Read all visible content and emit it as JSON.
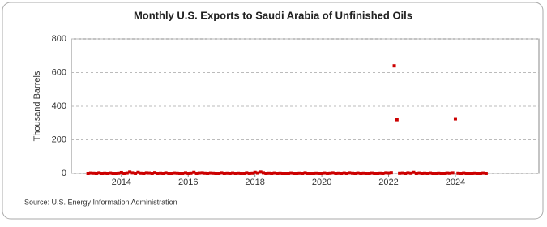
{
  "chart_data": {
    "type": "scatter",
    "title": "Monthly U.S. Exports to Saudi Arabia of Unfinished Oils",
    "y_label": "Thousand Barrels",
    "source": "Source: U.S. Energy Information Administration",
    "color": "#cc0000",
    "grid": true,
    "xlim": [
      2012.5,
      2026.5
    ],
    "xticks": [
      2014,
      2016,
      2018,
      2020,
      2022,
      2024
    ],
    "ylim": [
      0,
      800
    ],
    "yticks": [
      0,
      200,
      400,
      600,
      800
    ],
    "x": [
      2013.0,
      2013.08,
      2013.17,
      2013.25,
      2013.33,
      2013.42,
      2013.5,
      2013.58,
      2013.67,
      2013.75,
      2013.83,
      2013.92,
      2014.0,
      2014.08,
      2014.17,
      2014.25,
      2014.33,
      2014.42,
      2014.5,
      2014.58,
      2014.67,
      2014.75,
      2014.83,
      2014.92,
      2015.0,
      2015.08,
      2015.17,
      2015.25,
      2015.33,
      2015.42,
      2015.5,
      2015.58,
      2015.67,
      2015.75,
      2015.83,
      2015.92,
      2016.0,
      2016.08,
      2016.17,
      2016.25,
      2016.33,
      2016.42,
      2016.5,
      2016.58,
      2016.67,
      2016.75,
      2016.83,
      2016.92,
      2017.0,
      2017.08,
      2017.17,
      2017.25,
      2017.33,
      2017.42,
      2017.5,
      2017.58,
      2017.67,
      2017.75,
      2017.83,
      2017.92,
      2018.0,
      2018.08,
      2018.17,
      2018.25,
      2018.33,
      2018.42,
      2018.5,
      2018.58,
      2018.67,
      2018.75,
      2018.83,
      2018.92,
      2019.0,
      2019.08,
      2019.17,
      2019.25,
      2019.33,
      2019.42,
      2019.5,
      2019.58,
      2019.67,
      2019.75,
      2019.83,
      2019.92,
      2020.0,
      2020.08,
      2020.17,
      2020.25,
      2020.33,
      2020.42,
      2020.5,
      2020.58,
      2020.67,
      2020.75,
      2020.83,
      2020.92,
      2021.0,
      2021.08,
      2021.17,
      2021.25,
      2021.33,
      2021.42,
      2021.5,
      2021.58,
      2021.67,
      2021.75,
      2021.83,
      2021.92,
      2022.0,
      2022.08,
      2022.17,
      2022.25,
      2022.33,
      2022.42,
      2022.5,
      2022.58,
      2022.67,
      2022.75,
      2022.83,
      2022.92,
      2023.0,
      2023.08,
      2023.17,
      2023.25,
      2023.33,
      2023.42,
      2023.5,
      2023.58,
      2023.67,
      2023.75,
      2023.83,
      2023.92,
      2024.0,
      2024.08,
      2024.17,
      2024.25,
      2024.33,
      2024.42,
      2024.5,
      2024.58,
      2024.67,
      2024.75,
      2024.83,
      2024.92
    ],
    "values": [
      0,
      2,
      1,
      0,
      3,
      0,
      1,
      0,
      2,
      0,
      0,
      1,
      5,
      0,
      2,
      8,
      3,
      0,
      6,
      1,
      0,
      3,
      2,
      0,
      4,
      0,
      1,
      0,
      3,
      0,
      0,
      2,
      1,
      0,
      0,
      3,
      0,
      1,
      6,
      0,
      2,
      3,
      1,
      0,
      2,
      1,
      0,
      0,
      3,
      0,
      1,
      0,
      2,
      0,
      1,
      0,
      0,
      3,
      0,
      1,
      6,
      2,
      8,
      3,
      0,
      1,
      0,
      2,
      0,
      1,
      0,
      0,
      0,
      2,
      0,
      0,
      1,
      0,
      3,
      0,
      0,
      0,
      1,
      0,
      0,
      2,
      0,
      1,
      3,
      0,
      1,
      0,
      2,
      0,
      3,
      1,
      0,
      2,
      0,
      1,
      0,
      0,
      2,
      0,
      0,
      1,
      0,
      3,
      2,
      4,
      640,
      320,
      1,
      2,
      0,
      3,
      1,
      6,
      0,
      2,
      0,
      1,
      0,
      2,
      0,
      0,
      1,
      0,
      0,
      2,
      1,
      3,
      325,
      1,
      0,
      2,
      0,
      0,
      0,
      1,
      0,
      0,
      2,
      0
    ]
  }
}
